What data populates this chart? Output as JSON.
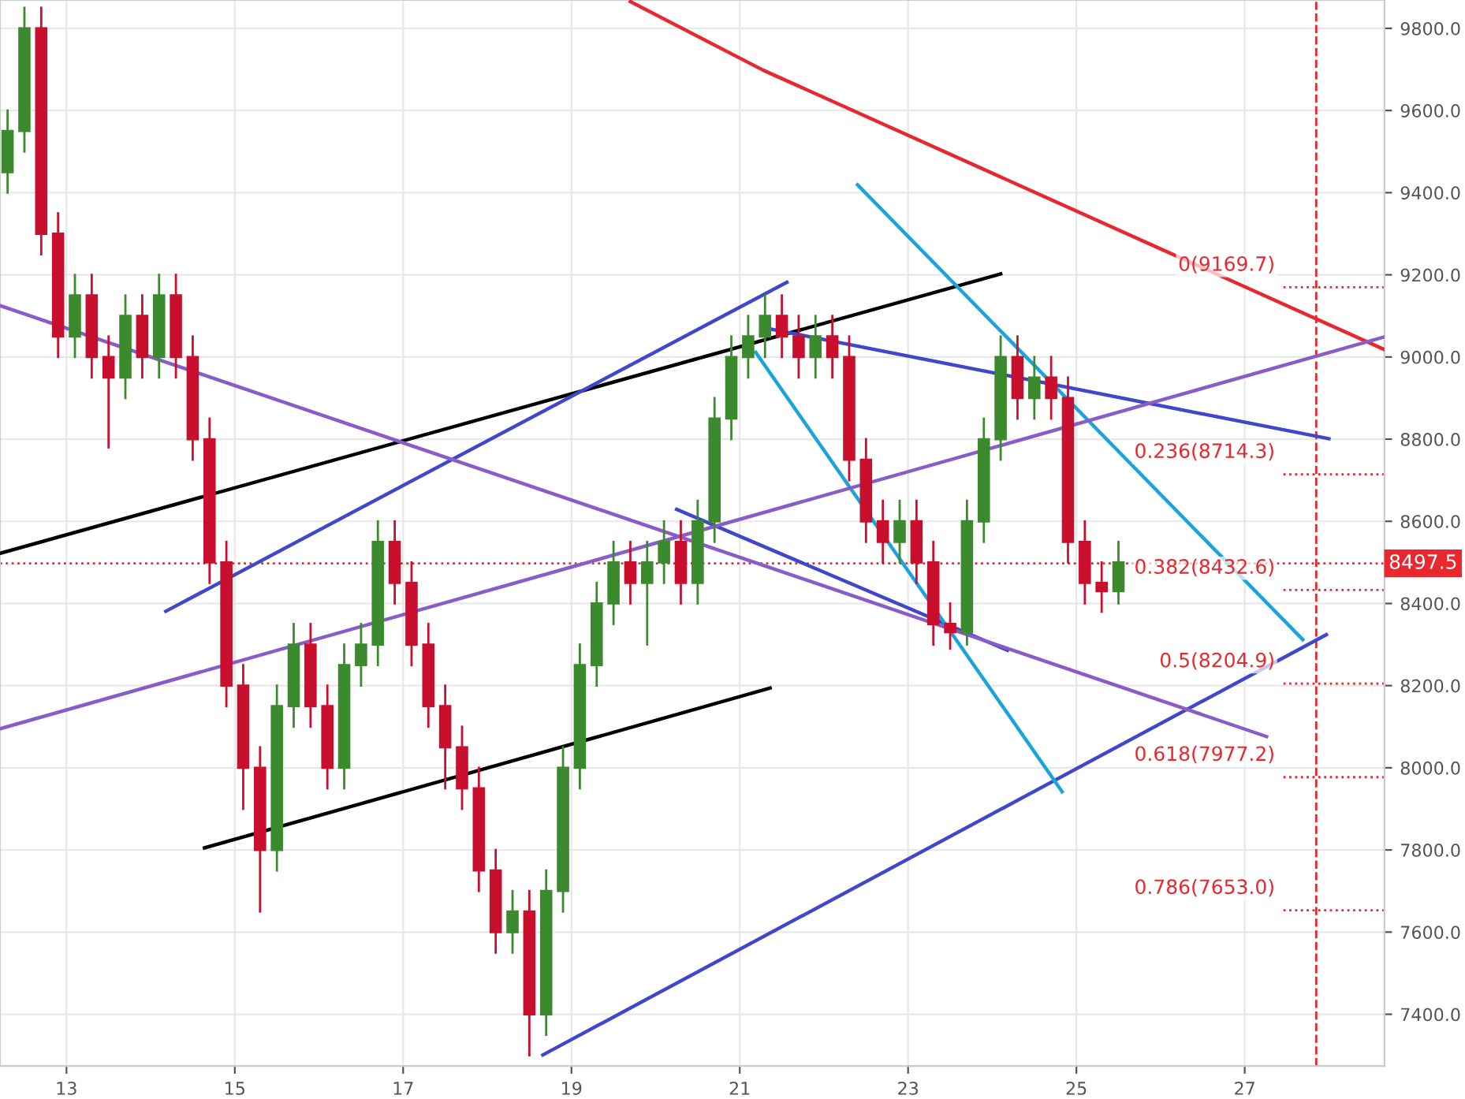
{
  "chart_data": {
    "type": "candlestick",
    "x": [
      12.3,
      12.5,
      12.7,
      12.9,
      13.1,
      13.3,
      13.5,
      13.7,
      13.9,
      14.1,
      14.3,
      14.5,
      14.7,
      14.9,
      15.1,
      15.3,
      15.5,
      15.7,
      15.9,
      16.1,
      16.3,
      16.5,
      16.7,
      16.9,
      17.1,
      17.3,
      17.5,
      17.7,
      17.9,
      18.1,
      18.3,
      18.5,
      18.7,
      18.9,
      19.1,
      19.3,
      19.5,
      19.7,
      19.9,
      20.1,
      20.3,
      20.5,
      20.7,
      20.9,
      21.1,
      21.3,
      21.5,
      21.7,
      21.9,
      22.1,
      22.3,
      22.5,
      22.7,
      22.9,
      23.1,
      23.3,
      23.5,
      23.7,
      23.9,
      24.1,
      24.3,
      24.5,
      24.7,
      24.9,
      25.1,
      25.3,
      25.5
    ],
    "ohlc": [
      [
        9450,
        9600,
        9400,
        9550
      ],
      [
        9550,
        9850,
        9500,
        9800
      ],
      [
        9800,
        9850,
        9250,
        9300
      ],
      [
        9300,
        9350,
        9000,
        9050
      ],
      [
        9050,
        9200,
        9000,
        9150
      ],
      [
        9150,
        9200,
        8950,
        9000
      ],
      [
        9000,
        9050,
        8780,
        8950
      ],
      [
        8950,
        9150,
        8900,
        9100
      ],
      [
        9100,
        9150,
        8950,
        9000
      ],
      [
        9000,
        9200,
        8950,
        9150
      ],
      [
        9150,
        9200,
        8950,
        9000
      ],
      [
        9000,
        9050,
        8750,
        8800
      ],
      [
        8800,
        8850,
        8450,
        8500
      ],
      [
        8500,
        8550,
        8150,
        8200
      ],
      [
        8200,
        8250,
        7900,
        8000
      ],
      [
        8000,
        8050,
        7650,
        7800
      ],
      [
        7800,
        8200,
        7750,
        8150
      ],
      [
        8150,
        8350,
        8100,
        8300
      ],
      [
        8300,
        8350,
        8100,
        8150
      ],
      [
        8150,
        8200,
        7950,
        8000
      ],
      [
        8000,
        8300,
        7950,
        8250
      ],
      [
        8250,
        8350,
        8200,
        8300
      ],
      [
        8300,
        8600,
        8250,
        8550
      ],
      [
        8550,
        8600,
        8400,
        8450
      ],
      [
        8450,
        8500,
        8250,
        8300
      ],
      [
        8300,
        8350,
        8100,
        8150
      ],
      [
        8150,
        8200,
        7950,
        8050
      ],
      [
        8050,
        8100,
        7900,
        7950
      ],
      [
        7950,
        8000,
        7700,
        7750
      ],
      [
        7750,
        7800,
        7550,
        7600
      ],
      [
        7600,
        7700,
        7550,
        7650
      ],
      [
        7650,
        7700,
        7300,
        7400
      ],
      [
        7400,
        7750,
        7350,
        7700
      ],
      [
        7700,
        8050,
        7650,
        8000
      ],
      [
        8000,
        8300,
        7950,
        8250
      ],
      [
        8250,
        8450,
        8200,
        8400
      ],
      [
        8400,
        8550,
        8350,
        8500
      ],
      [
        8500,
        8550,
        8400,
        8450
      ],
      [
        8450,
        8550,
        8300,
        8500
      ],
      [
        8500,
        8600,
        8450,
        8550
      ],
      [
        8550,
        8600,
        8400,
        8450
      ],
      [
        8450,
        8650,
        8400,
        8600
      ],
      [
        8600,
        8900,
        8550,
        8850
      ],
      [
        8850,
        9050,
        8800,
        9000
      ],
      [
        9000,
        9100,
        8950,
        9050
      ],
      [
        9050,
        9150,
        9000,
        9100
      ],
      [
        9100,
        9150,
        9000,
        9050
      ],
      [
        9050,
        9100,
        8950,
        9000
      ],
      [
        9000,
        9100,
        8950,
        9050
      ],
      [
        9050,
        9100,
        8950,
        9000
      ],
      [
        9000,
        9050,
        8700,
        8750
      ],
      [
        8750,
        8800,
        8550,
        8600
      ],
      [
        8600,
        8650,
        8500,
        8550
      ],
      [
        8550,
        8650,
        8500,
        8600
      ],
      [
        8600,
        8650,
        8450,
        8500
      ],
      [
        8500,
        8550,
        8300,
        8350
      ],
      [
        8350,
        8400,
        8290,
        8330
      ],
      [
        8330,
        8650,
        8300,
        8600
      ],
      [
        8600,
        8850,
        8550,
        8800
      ],
      [
        8800,
        9050,
        8750,
        9000
      ],
      [
        9000,
        9050,
        8850,
        8900
      ],
      [
        8900,
        9000,
        8850,
        8950
      ],
      [
        8950,
        9000,
        8850,
        8900
      ],
      [
        8900,
        8950,
        8500,
        8550
      ],
      [
        8550,
        8600,
        8400,
        8450
      ],
      [
        8450,
        8500,
        8380,
        8430
      ],
      [
        8430,
        8550,
        8400,
        8500
      ]
    ],
    "colors": [
      "#3c8a2e",
      "#3c8a2e",
      "#c8102e",
      "#c8102e",
      "#3c8a2e",
      "#c8102e",
      "#c8102e",
      "#3c8a2e",
      "#c8102e",
      "#3c8a2e",
      "#c8102e",
      "#c8102e",
      "#c8102e",
      "#c8102e",
      "#c8102e",
      "#c8102e",
      "#3c8a2e",
      "#3c8a2e",
      "#c8102e",
      "#c8102e",
      "#3c8a2e",
      "#3c8a2e",
      "#3c8a2e",
      "#c8102e",
      "#c8102e",
      "#c8102e",
      "#c8102e",
      "#c8102e",
      "#c8102e",
      "#c8102e",
      "#3c8a2e",
      "#c8102e",
      "#3c8a2e",
      "#3c8a2e",
      "#3c8a2e",
      "#3c8a2e",
      "#3c8a2e",
      "#c8102e",
      "#3c8a2e",
      "#3c8a2e",
      "#c8102e",
      "#3c8a2e",
      "#3c8a2e",
      "#3c8a2e",
      "#3c8a2e",
      "#3c8a2e",
      "#c8102e",
      "#c8102e",
      "#3c8a2e",
      "#c8102e",
      "#c8102e",
      "#c8102e",
      "#c8102e",
      "#3c8a2e",
      "#c8102e",
      "#c8102e",
      "#c8102e",
      "#3c8a2e",
      "#3c8a2e",
      "#3c8a2e",
      "#c8102e",
      "#3c8a2e",
      "#c8102e",
      "#c8102e",
      "#c8102e",
      "#c8102e",
      "#3c8a2e"
    ],
    "series": [
      {
        "type": "line",
        "x": [
          19.7,
          21.28,
          28.66
        ],
        "values": [
          9865,
          9698,
          9018
        ],
        "color": "#e8282e"
      },
      {
        "type": "line",
        "x": [
          12.21,
          24.1
        ],
        "values": [
          8522,
          9202
        ],
        "color": "#000000"
      },
      {
        "type": "line",
        "x": [
          14.64,
          21.36
        ],
        "values": [
          7805,
          8194
        ],
        "color": "#000000"
      },
      {
        "type": "line",
        "x": [
          18.66,
          27.97
        ],
        "values": [
          7301,
          8324
        ],
        "color": "#3f48cc"
      },
      {
        "type": "line",
        "x": [
          14.18,
          21.56
        ],
        "values": [
          8381,
          9182
        ],
        "color": "#3f48cc"
      },
      {
        "type": "line",
        "x": [
          20.25,
          24.18
        ],
        "values": [
          8629,
          8286
        ],
        "color": "#3f48cc"
      },
      {
        "type": "line",
        "x": [
          21.37,
          28.0
        ],
        "values": [
          9068,
          8801
        ],
        "color": "#3f48cc"
      },
      {
        "type": "line",
        "x": [
          22.4,
          27.69
        ],
        "values": [
          9419,
          8312
        ],
        "color": "#1aa3dc"
      },
      {
        "type": "line",
        "x": [
          21.19,
          24.83
        ],
        "values": [
          9011,
          7942
        ],
        "color": "#1aa3dc"
      },
      {
        "type": "line",
        "x": [
          12.21,
          28.66
        ],
        "values": [
          8095,
          9049
        ],
        "color": "#8a5cc8"
      },
      {
        "type": "line",
        "x": [
          12.21,
          27.26
        ],
        "values": [
          9125,
          8076
        ],
        "color": "#8a5cc8"
      }
    ],
    "ref_lines": [
      {
        "axis": "y",
        "value": 9169.7,
        "label": "0(9169.7)",
        "color": "#e8282e"
      },
      {
        "axis": "y",
        "value": 8714.3,
        "label": "0.236(8714.3)",
        "color": "#e8282e"
      },
      {
        "axis": "y",
        "value": 8432.6,
        "label": "0.382(8432.6)",
        "color": "#e8282e"
      },
      {
        "axis": "y",
        "value": 8204.9,
        "label": "0.5(8204.9)",
        "color": "#e8282e"
      },
      {
        "axis": "y",
        "value": 7977.2,
        "label": "0.618(7977.2)",
        "color": "#e8282e"
      },
      {
        "axis": "y",
        "value": 7653.0,
        "label": "0.786(7653.0)",
        "color": "#e8282e"
      },
      {
        "axis": "y",
        "value": 8497.5,
        "label": "8497.5",
        "color": "#e8282e",
        "line_style": "dotted"
      },
      {
        "axis": "x",
        "value": 27.85,
        "label": null,
        "color": "#e8282e",
        "line_style": "dashed"
      }
    ],
    "xlim": [
      12.21,
      28.66
    ],
    "ylim": [
      7274,
      9869
    ],
    "xticks": [
      13,
      15,
      17,
      19,
      21,
      23,
      25,
      27
    ],
    "yticks": [
      {
        "value": 7400,
        "label": "7400.0"
      },
      {
        "value": 7600,
        "label": "7600.0"
      },
      {
        "value": 7800,
        "label": "7800.0"
      },
      {
        "value": 8000,
        "label": "8000.0"
      },
      {
        "value": 8200,
        "label": "8200.0"
      },
      {
        "value": 8400,
        "label": "8400.0"
      },
      {
        "value": 8600,
        "label": "8600.0"
      },
      {
        "value": 8800,
        "label": "8800.0"
      },
      {
        "value": 9000,
        "label": "9000.0"
      },
      {
        "value": 9200,
        "label": "9200.0"
      },
      {
        "value": 9400,
        "label": "9400.0"
      },
      {
        "value": 9600,
        "label": "9600.0"
      },
      {
        "value": 9800,
        "label": "9800.0"
      }
    ],
    "grid": true
  }
}
